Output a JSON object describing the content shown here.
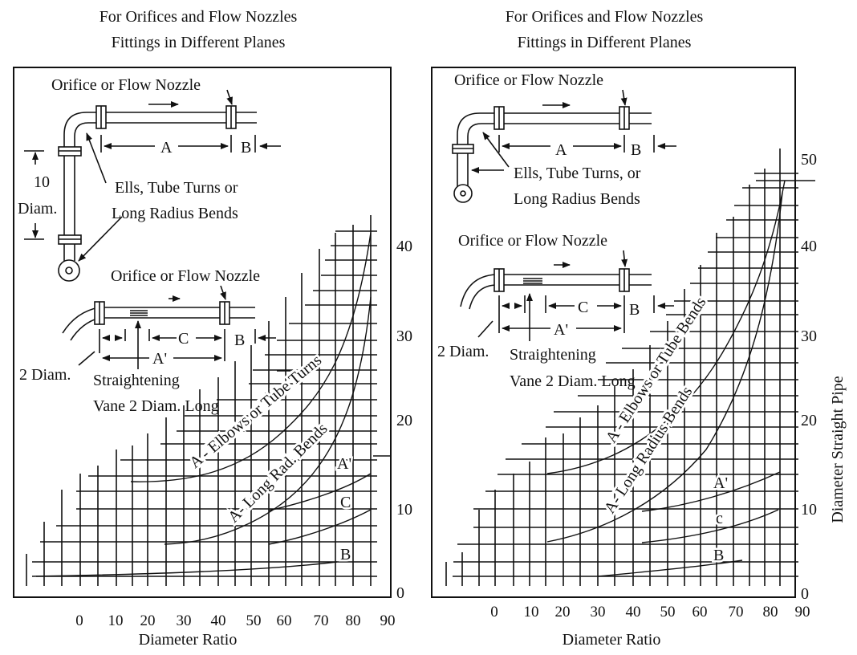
{
  "left": {
    "title1": "For Orifices and Flow Nozzles",
    "title2": "Fittings in Different Planes",
    "label_nozzle_top": "Orifice or Flow Nozzle",
    "label_nozzle_mid": "Orifice or Flow Nozzle",
    "label_A": "A",
    "label_B_top": "B",
    "label_10": "10",
    "label_diam": "Diam.",
    "label_ells_1": "Ells, Tube Turns or",
    "label_ells_2": "Long Radius Bends",
    "label_C": "C",
    "label_B_mid": "B",
    "label_Aprime": "A'",
    "label_2diam": "2 Diam.",
    "label_vane_1": "Straightening",
    "label_vane_2": "Vane 2 Diam. Long",
    "curve_elbows": "A - Elbows or Tube Turns",
    "curve_longrad": "A- Long Rad. Bends",
    "curve_Aprime": "A'",
    "curve_C": "C",
    "curve_B": "B",
    "y_ticks": [
      "0",
      "10",
      "20",
      "30",
      "40"
    ],
    "x_ticks": [
      "0",
      "10",
      "20",
      "30",
      "40",
      "50",
      "60",
      "70",
      "80",
      "90"
    ],
    "x_label": "Diameter Ratio"
  },
  "right": {
    "title1": "For Orifices and Flow Nozzles",
    "title2": "Fittings in Different Planes",
    "label_nozzle_top": "Orifice or Flow Nozzle",
    "label_nozzle_mid": "Orifice or Flow Nozzle",
    "label_A": "A",
    "label_B_top": "B",
    "label_ells_1": "Ells, Tube Turns, or",
    "label_ells_2": "Long Radius Bends",
    "label_C": "C",
    "label_B_mid": "B",
    "label_Aprime": "A'",
    "label_2diam": "2 Diam.",
    "label_vane_1": "Straightening",
    "label_vane_2": "Vane 2 Diam. Long",
    "curve_elbows": "A - Elbows or Tube Bends",
    "curve_longrad": "A- Long Radius Bends",
    "curve_Aprime": "A'",
    "curve_C": "c",
    "curve_B": "B",
    "y_ticks": [
      "0",
      "10",
      "20",
      "30",
      "40",
      "50"
    ],
    "x_ticks": [
      "0",
      "10",
      "20",
      "30",
      "40",
      "50",
      "60",
      "70",
      "80",
      "90"
    ],
    "x_label": "Diameter Ratio",
    "y_label": "Diameter Straight Pipe"
  }
}
